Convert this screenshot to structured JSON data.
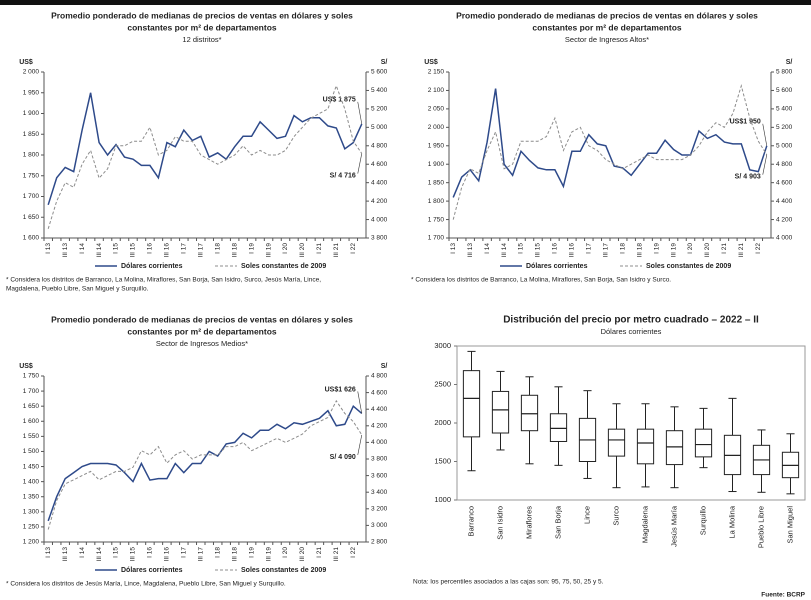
{
  "chart_data": [
    {
      "type": "line",
      "title": [
        "Promedio ponderado de medianas de precios de ventas en dólares y soles",
        "constantes por m² de departamentos"
      ],
      "subtitle": "12 distritos*",
      "ylabel": "US$",
      "y2label": "S/",
      "categories": [
        "I 13",
        null,
        "III 13",
        null,
        "I 14",
        null,
        "III 14",
        null,
        "I 15",
        null,
        "III 15",
        null,
        "I 16",
        null,
        "III 16",
        null,
        "I 17",
        null,
        "III 17",
        null,
        "I 18",
        null,
        "III 18",
        null,
        "I 19",
        null,
        "III 19",
        null,
        "I 20",
        null,
        "III 20",
        null,
        "I 21",
        null,
        "III 21",
        null,
        "I 22",
        null
      ],
      "series": [
        {
          "name": "Dólares corrientes",
          "color": "#2e4a8a",
          "dash": false,
          "values": [
            1680,
            1745,
            1770,
            1760,
            1860,
            1950,
            1830,
            1800,
            1825,
            1795,
            1790,
            1775,
            1775,
            1745,
            1830,
            1820,
            1860,
            1835,
            1845,
            1795,
            1805,
            1790,
            1820,
            1845,
            1845,
            1880,
            1860,
            1840,
            1845,
            1895,
            1880,
            1890,
            1890,
            1870,
            1865,
            1815,
            1830,
            1875
          ]
        },
        {
          "name": "Soles constantes de 2009",
          "color": "#8c8c8c",
          "dash": true,
          "axis": "y2",
          "values": [
            3900,
            4200,
            4400,
            4350,
            4600,
            4750,
            4450,
            4550,
            4800,
            4800,
            4850,
            4850,
            5000,
            4700,
            4750,
            4900,
            4850,
            4850,
            4700,
            4650,
            4600,
            4650,
            4700,
            4800,
            4700,
            4750,
            4700,
            4700,
            4750,
            4900,
            5000,
            5100,
            5150,
            5200,
            5450,
            5200,
            4850,
            4716
          ]
        }
      ],
      "ylim": [
        1600,
        2000
      ],
      "yticks": [
        {
          "value": 1600,
          "label": "1 600"
        },
        {
          "value": 1650,
          "label": "1 650"
        },
        {
          "value": 1700,
          "label": "1 700"
        },
        {
          "value": 1750,
          "label": "1 750"
        },
        {
          "value": 1800,
          "label": "1 800"
        },
        {
          "value": 1850,
          "label": "1 850"
        },
        {
          "value": 1900,
          "label": "1 900"
        },
        {
          "value": 1950,
          "label": "1 950"
        },
        {
          "value": 2000,
          "label": "2 000"
        }
      ],
      "y2lim": [
        3800,
        5600
      ],
      "y2ticks": [
        {
          "value": 3800,
          "label": "3 800"
        },
        {
          "value": 4000,
          "label": "4 000"
        },
        {
          "value": 4200,
          "label": "4 200"
        },
        {
          "value": 4400,
          "label": "4 400"
        },
        {
          "value": 4600,
          "label": "4 600"
        },
        {
          "value": 4800,
          "label": "4 800"
        },
        {
          "value": 5000,
          "label": "5 000"
        },
        {
          "value": 5200,
          "label": "5 200"
        },
        {
          "value": 5400,
          "label": "5 400"
        },
        {
          "value": 5600,
          "label": "5 600"
        }
      ],
      "annotations": [
        "US$ 1 875",
        "S/ 4 716"
      ],
      "footnote": [
        "* Considera los distritos de Barranco, La Molina, Miraflores, San Borja, San Isidro, Surco, Jesús María, Lince,",
        "Magdalena, Pueblo Libre, San Miguel y Surquillo."
      ]
    },
    {
      "type": "line",
      "title": [
        "Promedio ponderado de medianas de precios de ventas en dólares y soles",
        "constantes por m² de departamentos"
      ],
      "subtitle": "Sector de Ingresos Altos*",
      "ylabel": "US$",
      "y2label": "S/",
      "categories": [
        "I 13",
        null,
        "III 13",
        null,
        "I 14",
        null,
        "III 14",
        null,
        "I 15",
        null,
        "III 15",
        null,
        "I 16",
        null,
        "III 16",
        null,
        "I 17",
        null,
        "III 17",
        null,
        "I 18",
        null,
        "III 18",
        null,
        "I 19",
        null,
        "III 19",
        null,
        "I 20",
        null,
        "III 20",
        null,
        "I 21",
        null,
        "III 21",
        null,
        "I 22",
        null
      ],
      "series": [
        {
          "name": "Dólares corrientes",
          "color": "#2e4a8a",
          "dash": false,
          "values": [
            1810,
            1865,
            1885,
            1855,
            1960,
            2105,
            1900,
            1870,
            1935,
            1910,
            1890,
            1885,
            1885,
            1840,
            1935,
            1935,
            1980,
            1955,
            1950,
            1895,
            1890,
            1870,
            1900,
            1930,
            1930,
            1965,
            1940,
            1925,
            1925,
            1990,
            1970,
            1980,
            1960,
            1955,
            1955,
            1885,
            1880,
            1950
          ]
        },
        {
          "name": "Soles constantes de 2009",
          "color": "#8c8c8c",
          "dash": true,
          "axis": "y2",
          "values": [
            4200,
            4550,
            4750,
            4700,
            4950,
            5150,
            4750,
            4800,
            5050,
            5050,
            5050,
            5100,
            5300,
            4950,
            5150,
            5200,
            5000,
            4950,
            4850,
            4800,
            4750,
            4800,
            4850,
            4900,
            4850,
            4850,
            4850,
            4850,
            4900,
            5000,
            5150,
            5250,
            5200,
            5350,
            5650,
            5300,
            5050,
            4903
          ]
        }
      ],
      "ylim": [
        1700,
        2150
      ],
      "yticks": [
        {
          "value": 1700,
          "label": "1 700"
        },
        {
          "value": 1750,
          "label": "1 750"
        },
        {
          "value": 1800,
          "label": "1 800"
        },
        {
          "value": 1850,
          "label": "1 850"
        },
        {
          "value": 1900,
          "label": "1 900"
        },
        {
          "value": 1950,
          "label": "1 950"
        },
        {
          "value": 2000,
          "label": "2 000"
        },
        {
          "value": 2050,
          "label": "2 050"
        },
        {
          "value": 2100,
          "label": "2 100"
        },
        {
          "value": 2150,
          "label": "2 150"
        }
      ],
      "y2lim": [
        4000,
        5800
      ],
      "y2ticks": [
        {
          "value": 4000,
          "label": "4 000"
        },
        {
          "value": 4200,
          "label": "4 200"
        },
        {
          "value": 4400,
          "label": "4 400"
        },
        {
          "value": 4600,
          "label": "4 600"
        },
        {
          "value": 4800,
          "label": "4 800"
        },
        {
          "value": 5000,
          "label": "5 000"
        },
        {
          "value": 5200,
          "label": "5 200"
        },
        {
          "value": 5400,
          "label": "5 400"
        },
        {
          "value": 5600,
          "label": "5 600"
        },
        {
          "value": 5800,
          "label": "5 800"
        }
      ],
      "annotations": [
        "US$1 950",
        "S/ 4 903"
      ],
      "footnote": [
        "* Considera los distritos de Barranco, La Molina, Miraflores, San Borja, San Isidro y Surco."
      ]
    },
    {
      "type": "line",
      "title": [
        "Promedio ponderado de medianas de precios de ventas en dólares y soles",
        "constantes por m² de departamentos"
      ],
      "subtitle": "Sector de Ingresos Medios*",
      "ylabel": "US$",
      "y2label": "S/",
      "categories": [
        "I 13",
        null,
        "III 13",
        null,
        "I 14",
        null,
        "III 14",
        null,
        "I 15",
        null,
        "III 15",
        null,
        "I 16",
        null,
        "III 16",
        null,
        "I 17",
        null,
        "III 17",
        null,
        "I 18",
        null,
        "III 18",
        null,
        "I 19",
        null,
        "III 19",
        null,
        "I 20",
        null,
        "III 20",
        null,
        "I 21",
        null,
        "III 21",
        null,
        "I 22",
        null
      ],
      "series": [
        {
          "name": "Dólares corrientes",
          "color": "#2e4a8a",
          "dash": false,
          "values": [
            1270,
            1350,
            1410,
            1430,
            1450,
            1460,
            1460,
            1460,
            1455,
            1430,
            1400,
            1460,
            1405,
            1410,
            1410,
            1460,
            1430,
            1460,
            1460,
            1500,
            1485,
            1525,
            1530,
            1560,
            1545,
            1570,
            1570,
            1590,
            1575,
            1595,
            1590,
            1600,
            1610,
            1635,
            1585,
            1590,
            1650,
            1626
          ]
        },
        {
          "name": "Soles constantes de 2009",
          "color": "#8c8c8c",
          "dash": true,
          "axis": "y2",
          "values": [
            2950,
            3300,
            3500,
            3550,
            3600,
            3650,
            3550,
            3600,
            3650,
            3650,
            3700,
            3900,
            3850,
            3950,
            3750,
            3850,
            3900,
            3800,
            3850,
            3850,
            3850,
            3950,
            3950,
            4000,
            3900,
            3950,
            4000,
            4050,
            4000,
            4050,
            4100,
            4200,
            4250,
            4300,
            4500,
            4350,
            4250,
            4090
          ]
        }
      ],
      "ylim": [
        1200,
        1750
      ],
      "yticks": [
        {
          "value": 1200,
          "label": "1 200"
        },
        {
          "value": 1250,
          "label": "1 250"
        },
        {
          "value": 1300,
          "label": "1 300"
        },
        {
          "value": 1350,
          "label": "1 350"
        },
        {
          "value": 1400,
          "label": "1 400"
        },
        {
          "value": 1450,
          "label": "1 450"
        },
        {
          "value": 1500,
          "label": "1 500"
        },
        {
          "value": 1550,
          "label": "1 550"
        },
        {
          "value": 1600,
          "label": "1 600"
        },
        {
          "value": 1650,
          "label": "1 650"
        },
        {
          "value": 1700,
          "label": "1 700"
        },
        {
          "value": 1750,
          "label": "1 750"
        }
      ],
      "y2lim": [
        2800,
        4800
      ],
      "y2ticks": [
        {
          "value": 2800,
          "label": "2 800"
        },
        {
          "value": 3000,
          "label": "3 000"
        },
        {
          "value": 3200,
          "label": "3 200"
        },
        {
          "value": 3400,
          "label": "3 400"
        },
        {
          "value": 3600,
          "label": "3 600"
        },
        {
          "value": 3800,
          "label": "3 800"
        },
        {
          "value": 4000,
          "label": "4 000"
        },
        {
          "value": 4200,
          "label": "4 200"
        },
        {
          "value": 4400,
          "label": "4 400"
        },
        {
          "value": 4600,
          "label": "4 600"
        },
        {
          "value": 4800,
          "label": "4 800"
        }
      ],
      "annotations": [
        "US$1 626",
        "S/ 4 090"
      ],
      "footnote": [
        "* Considera los distritos de Jesús María, Lince, Magdalena, Pueblo Libre, San Miguel y Surquillo."
      ]
    },
    {
      "type": "box",
      "title": [
        "Distribución del precio por metro cuadrado – 2022 – II"
      ],
      "subtitle": "Dólares corrientes",
      "categories": [
        "Barranco",
        "San Isidro",
        "Miraflores",
        "San Borja",
        "Lince",
        "Surco",
        "Magdalena",
        "Jesús María",
        "Surquillo",
        "La Molina",
        "Pueblo Libre",
        "San Miguel"
      ],
      "color": "#ffffff",
      "p5": [
        1380,
        1650,
        1470,
        1450,
        1280,
        1160,
        1170,
        1160,
        1420,
        1110,
        1100,
        1080
      ],
      "p25": [
        1820,
        1870,
        1900,
        1760,
        1500,
        1570,
        1470,
        1460,
        1560,
        1330,
        1330,
        1290
      ],
      "p50": [
        2320,
        2170,
        2120,
        1930,
        1780,
        1780,
        1740,
        1690,
        1720,
        1580,
        1520,
        1450
      ],
      "p75": [
        2680,
        2410,
        2360,
        2120,
        2060,
        1920,
        1920,
        1900,
        1920,
        1840,
        1710,
        1620
      ],
      "p95": [
        2930,
        2670,
        2600,
        2470,
        2420,
        2250,
        2250,
        2210,
        2190,
        2320,
        1910,
        1860
      ],
      "ylim": [
        1000,
        3000
      ],
      "yticks": [
        1000,
        1500,
        2000,
        2500,
        3000
      ],
      "note": "Nota: los percentiles asociados a las cajas son: 95, 75, 50, 25 y 5.",
      "source": "Fuente: BCRP"
    }
  ]
}
